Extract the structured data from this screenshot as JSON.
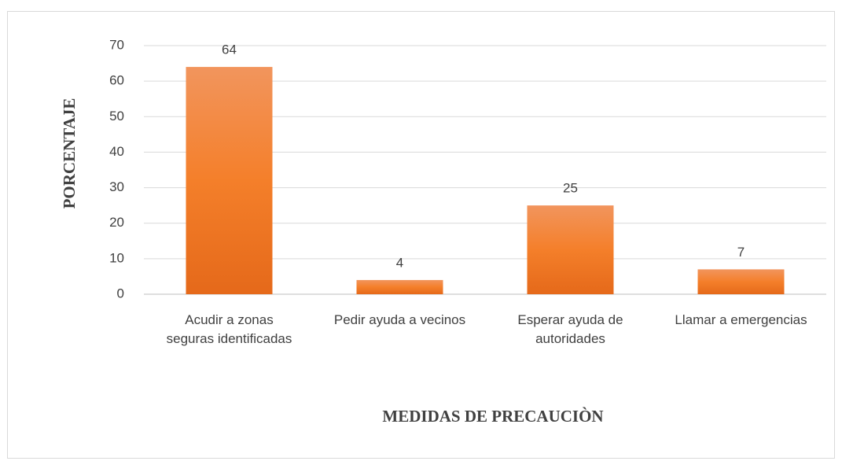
{
  "chart_data": {
    "type": "bar",
    "categories": [
      "Acudir a zonas seguras identificadas",
      "Pedir ayuda a vecinos",
      "Esperar ayuda de autoridades",
      "Llamar a emergencias"
    ],
    "values": [
      64,
      4,
      25,
      7
    ],
    "color": "#ee7a2c",
    "ylabel": "PORCENTAJE",
    "xlabel": "MEDIDAS DE PRECAUCIÒN",
    "ylim": [
      0,
      70
    ],
    "yticks": [
      0,
      10,
      20,
      30,
      40,
      50,
      60,
      70
    ],
    "grid": true
  }
}
